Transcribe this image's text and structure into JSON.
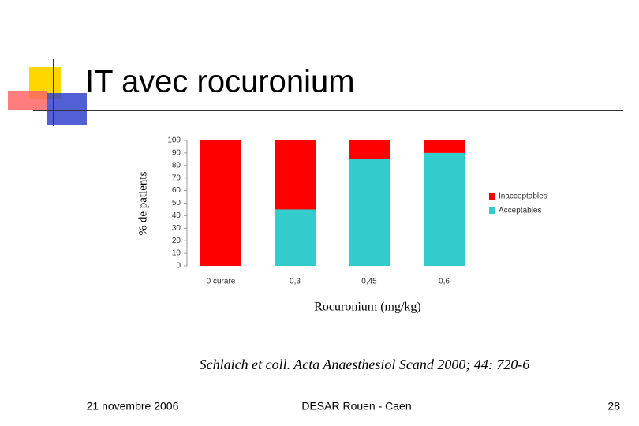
{
  "slide_title": "IT avec rocuronium",
  "chart_data": {
    "type": "stacked_bar",
    "x_label": "Rocuronium (mg/kg)",
    "y_label": "% de patients",
    "categories": [
      "0 curare",
      "0,3",
      "0,45",
      "0,6"
    ],
    "series": [
      {
        "name": "Inacceptables",
        "color": "#ff0000",
        "values": [
          100,
          55,
          15,
          10
        ]
      },
      {
        "name": "Acceptables",
        "color": "#33cccc",
        "values": [
          0,
          45,
          85,
          90
        ]
      }
    ],
    "ylim": [
      0,
      100
    ],
    "yticks": [
      0,
      10,
      20,
      30,
      40,
      50,
      60,
      70,
      80,
      90,
      100
    ],
    "legend": "right"
  },
  "citation": "Schlaich et coll. Acta Anaesthesiol Scand 2000; 44: 720-6",
  "footer": {
    "date": "21 novembre 2006",
    "center": "DESAR Rouen - Caen",
    "page": "28"
  }
}
